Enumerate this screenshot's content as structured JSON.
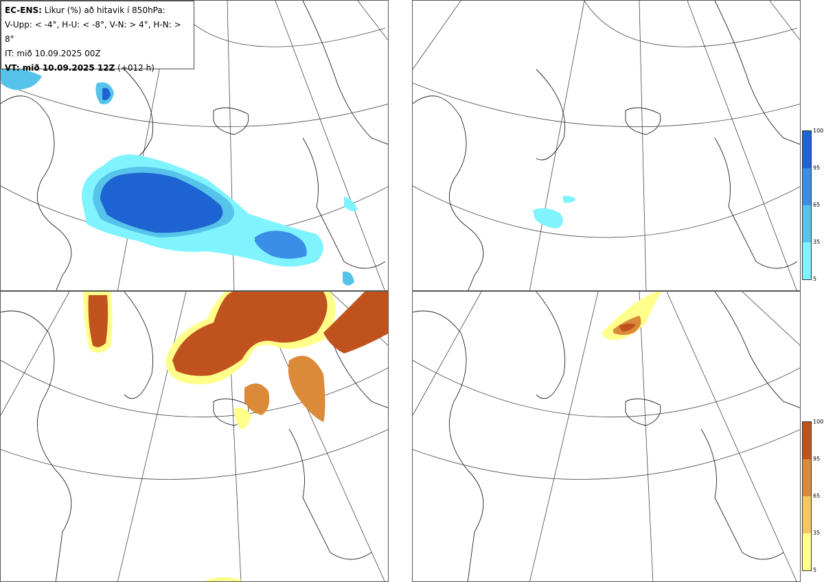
{
  "info": {
    "line1_bold": "EC-ENS:",
    "line1_rest": "Líkur (%) að hitavik í 850hPa:",
    "line2": "V-Upp: < -4°, H-U: < -8°, V-N: > 4°, H-N: > 8°",
    "line3": "IT: mið 10.09.2025 00Z",
    "line4_bold": "VT: mið 10.09.2025 12Z",
    "line4_rest": "(+012 h)"
  },
  "colorbar_cold": {
    "ticks": [
      "100",
      "95",
      "65",
      "35",
      "5"
    ],
    "colors": [
      "#1e63d2",
      "#3a8ee6",
      "#56c3ea",
      "#7ff4ff"
    ]
  },
  "colorbar_warm": {
    "ticks": [
      "100",
      "95",
      "65",
      "35",
      "5"
    ],
    "colors": [
      "#c0531d",
      "#db8a3a",
      "#f2c85c",
      "#ffff8a"
    ]
  },
  "panels": [
    {
      "id": "v-upp",
      "type": "cold"
    },
    {
      "id": "h-u",
      "type": "cold"
    },
    {
      "id": "v-n",
      "type": "warm"
    },
    {
      "id": "h-n",
      "type": "warm"
    }
  ]
}
